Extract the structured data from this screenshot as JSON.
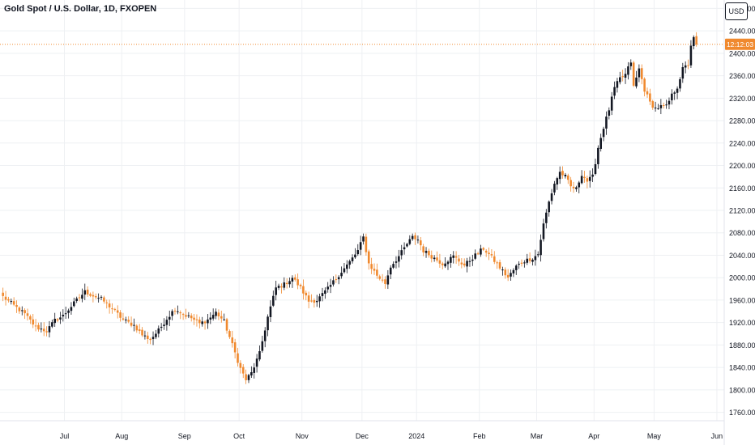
{
  "header": {
    "title": "Gold Spot / U.S. Dollar, 1D, FXOPEN",
    "currency": "USD"
  },
  "colors": {
    "up": "#131722",
    "down": "#f0892e",
    "grid": "#eef0f3",
    "price_line": "#f0892e"
  },
  "chart_data": {
    "type": "candlestick",
    "title": "Gold Spot / U.S. Dollar, 1D, FXOPEN",
    "xlabel": "",
    "ylabel": "",
    "ylim": [
      1745,
      2495
    ],
    "grid": true,
    "y_ticks": [
      "2480.00",
      "2440.00",
      "2400.00",
      "2360.00",
      "2320.00",
      "2280.00",
      "2240.00",
      "2200.00",
      "2160.00",
      "2120.00",
      "2080.00",
      "2040.00",
      "2000.00",
      "1960.00",
      "1920.00",
      "1880.00",
      "1840.00",
      "1800.00",
      "1760.00"
    ],
    "x_ticks": [
      {
        "label": "Jul",
        "index": 23
      },
      {
        "label": "Aug",
        "index": 44
      },
      {
        "label": "Sep",
        "index": 67
      },
      {
        "label": "Oct",
        "index": 87
      },
      {
        "label": "Nov",
        "index": 110
      },
      {
        "label": "Dec",
        "index": 132
      },
      {
        "label": "2024",
        "index": 152
      },
      {
        "label": "Feb",
        "index": 175
      },
      {
        "label": "Mar",
        "index": 196
      },
      {
        "label": "Apr",
        "index": 217
      },
      {
        "label": "May",
        "index": 239
      },
      {
        "label": "Jun",
        "index": 262
      }
    ],
    "current_price": 2416,
    "countdown_label": "12:12:03",
    "close_path": [
      [
        0,
        1966
      ],
      [
        8,
        1935
      ],
      [
        12,
        1912
      ],
      [
        16,
        1905
      ],
      [
        19,
        1924
      ],
      [
        22,
        1932
      ],
      [
        27,
        1960
      ],
      [
        30,
        1975
      ],
      [
        33,
        1968
      ],
      [
        36,
        1962
      ],
      [
        40,
        1945
      ],
      [
        44,
        1925
      ],
      [
        48,
        1915
      ],
      [
        51,
        1898
      ],
      [
        54,
        1890
      ],
      [
        57,
        1906
      ],
      [
        60,
        1927
      ],
      [
        63,
        1945
      ],
      [
        66,
        1935
      ],
      [
        69,
        1928
      ],
      [
        72,
        1918
      ],
      [
        75,
        1925
      ],
      [
        78,
        1938
      ],
      [
        81,
        1922
      ],
      [
        84,
        1880
      ],
      [
        87,
        1838
      ],
      [
        89,
        1818
      ],
      [
        91,
        1830
      ],
      [
        94,
        1865
      ],
      [
        97,
        1930
      ],
      [
        100,
        1982
      ],
      [
        103,
        1988
      ],
      [
        106,
        2000
      ],
      [
        109,
        1982
      ],
      [
        112,
        1958
      ],
      [
        115,
        1960
      ],
      [
        119,
        1980
      ],
      [
        123,
        2005
      ],
      [
        127,
        2028
      ],
      [
        130,
        2048
      ],
      [
        132,
        2072
      ],
      [
        134,
        2025
      ],
      [
        137,
        2004
      ],
      [
        140,
        1990
      ],
      [
        142,
        2020
      ],
      [
        145,
        2038
      ],
      [
        148,
        2060
      ],
      [
        150,
        2072
      ],
      [
        152,
        2068
      ],
      [
        154,
        2048
      ],
      [
        157,
        2038
      ],
      [
        161,
        2025
      ],
      [
        165,
        2038
      ],
      [
        169,
        2022
      ],
      [
        173,
        2040
      ],
      [
        176,
        2052
      ],
      [
        179,
        2036
      ],
      [
        182,
        2018
      ],
      [
        185,
        2000
      ],
      [
        188,
        2020
      ],
      [
        191,
        2030
      ],
      [
        194,
        2035
      ],
      [
        196,
        2042
      ],
      [
        198,
        2095
      ],
      [
        200,
        2135
      ],
      [
        202,
        2168
      ],
      [
        204,
        2188
      ],
      [
        206,
        2180
      ],
      [
        208,
        2162
      ],
      [
        210,
        2158
      ],
      [
        212,
        2185
      ],
      [
        214,
        2172
      ],
      [
        216,
        2180
      ],
      [
        218,
        2232
      ],
      [
        220,
        2268
      ],
      [
        222,
        2300
      ],
      [
        224,
        2338
      ],
      [
        226,
        2355
      ],
      [
        228,
        2362
      ],
      [
        230,
        2385
      ],
      [
        231,
        2340
      ],
      [
        233,
        2372
      ],
      [
        235,
        2335
      ],
      [
        237,
        2312
      ],
      [
        239,
        2302
      ],
      [
        241,
        2305
      ],
      [
        243,
        2305
      ],
      [
        245,
        2325
      ],
      [
        247,
        2340
      ],
      [
        249,
        2372
      ],
      [
        251,
        2380
      ],
      [
        252,
        2415
      ],
      [
        253,
        2426
      ],
      [
        254,
        2416
      ]
    ]
  }
}
